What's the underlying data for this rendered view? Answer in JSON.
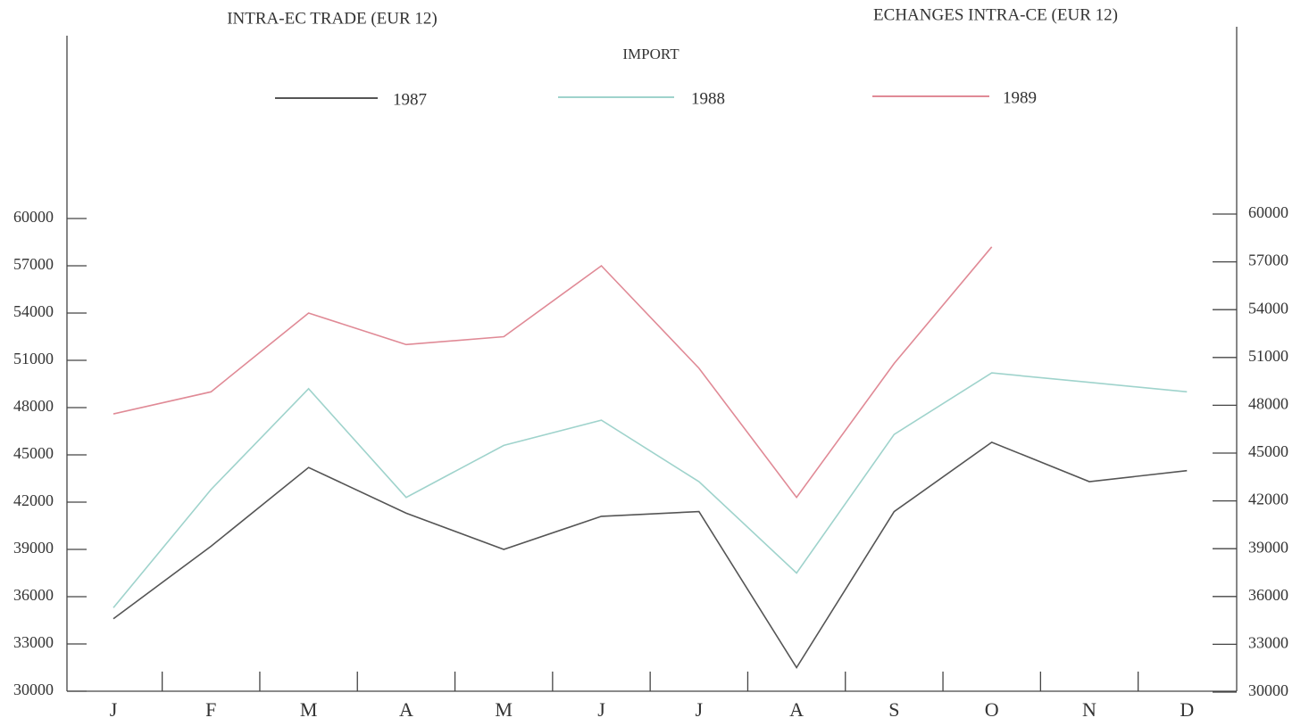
{
  "chart_data": {
    "type": "line",
    "title": "INTRA-EC TRADE (EUR 12)",
    "title_right": "ECHANGES INTRA-CE (EUR 12)",
    "subtitle": "IMPORT",
    "categories": [
      "J",
      "F",
      "M",
      "A",
      "M",
      "J",
      "J",
      "A",
      "S",
      "O",
      "N",
      "D"
    ],
    "series": [
      {
        "name": "1987",
        "color": "#555555",
        "values": [
          34600,
          39200,
          44200,
          41300,
          39000,
          41100,
          41400,
          31500,
          41400,
          45800,
          43300,
          44000
        ]
      },
      {
        "name": "1988",
        "color": "#9fd3cc",
        "values": [
          35300,
          42800,
          49200,
          42300,
          45600,
          47200,
          43300,
          37500,
          46300,
          50200,
          49600,
          49000
        ]
      },
      {
        "name": "1989",
        "color": "#e08a96",
        "values": [
          47600,
          49000,
          54000,
          52000,
          52500,
          57000,
          50500,
          42300,
          50800,
          58200,
          null,
          null
        ]
      }
    ],
    "ylim": [
      30000,
      60000
    ],
    "yticks": [
      30000,
      33000,
      36000,
      39000,
      42000,
      45000,
      48000,
      51000,
      54000,
      57000,
      60000
    ],
    "y2lim": [
      30000,
      60000
    ],
    "y2ticks": [
      30000,
      33000,
      36000,
      39000,
      42000,
      45000,
      48000,
      51000,
      54000,
      57000,
      60000
    ]
  }
}
